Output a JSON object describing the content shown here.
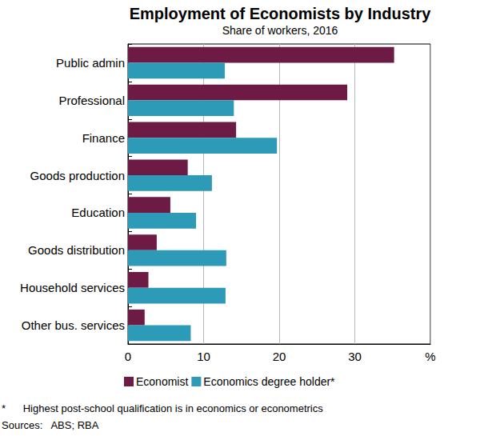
{
  "chart_data": {
    "type": "bar",
    "orientation": "horizontal",
    "title": "Employment of Economists by Industry",
    "subtitle": "Share of workers, 2016",
    "categories": [
      "Public admin",
      "Professional",
      "Finance",
      "Goods production",
      "Education",
      "Goods distribution",
      "Household services",
      "Other bus. services"
    ],
    "series": [
      {
        "name": "Economist",
        "color": "#6d1a45",
        "values": [
          35.2,
          29.0,
          14.3,
          7.9,
          5.6,
          3.8,
          2.7,
          2.2
        ]
      },
      {
        "name": "Economics degree holder*",
        "color": "#2d9ab7",
        "values": [
          12.8,
          14.0,
          19.7,
          11.1,
          9.0,
          13.0,
          12.9,
          8.3
        ]
      }
    ],
    "xlim": [
      0,
      40
    ],
    "xticks": [
      0,
      10,
      20,
      30,
      {
        "value": 40,
        "label": "%"
      }
    ],
    "grid": true,
    "legend": "bottom",
    "footnotes": [
      "*      Highest post-school qualification is in economics or econometrics",
      "Sources:   ABS; RBA"
    ]
  }
}
